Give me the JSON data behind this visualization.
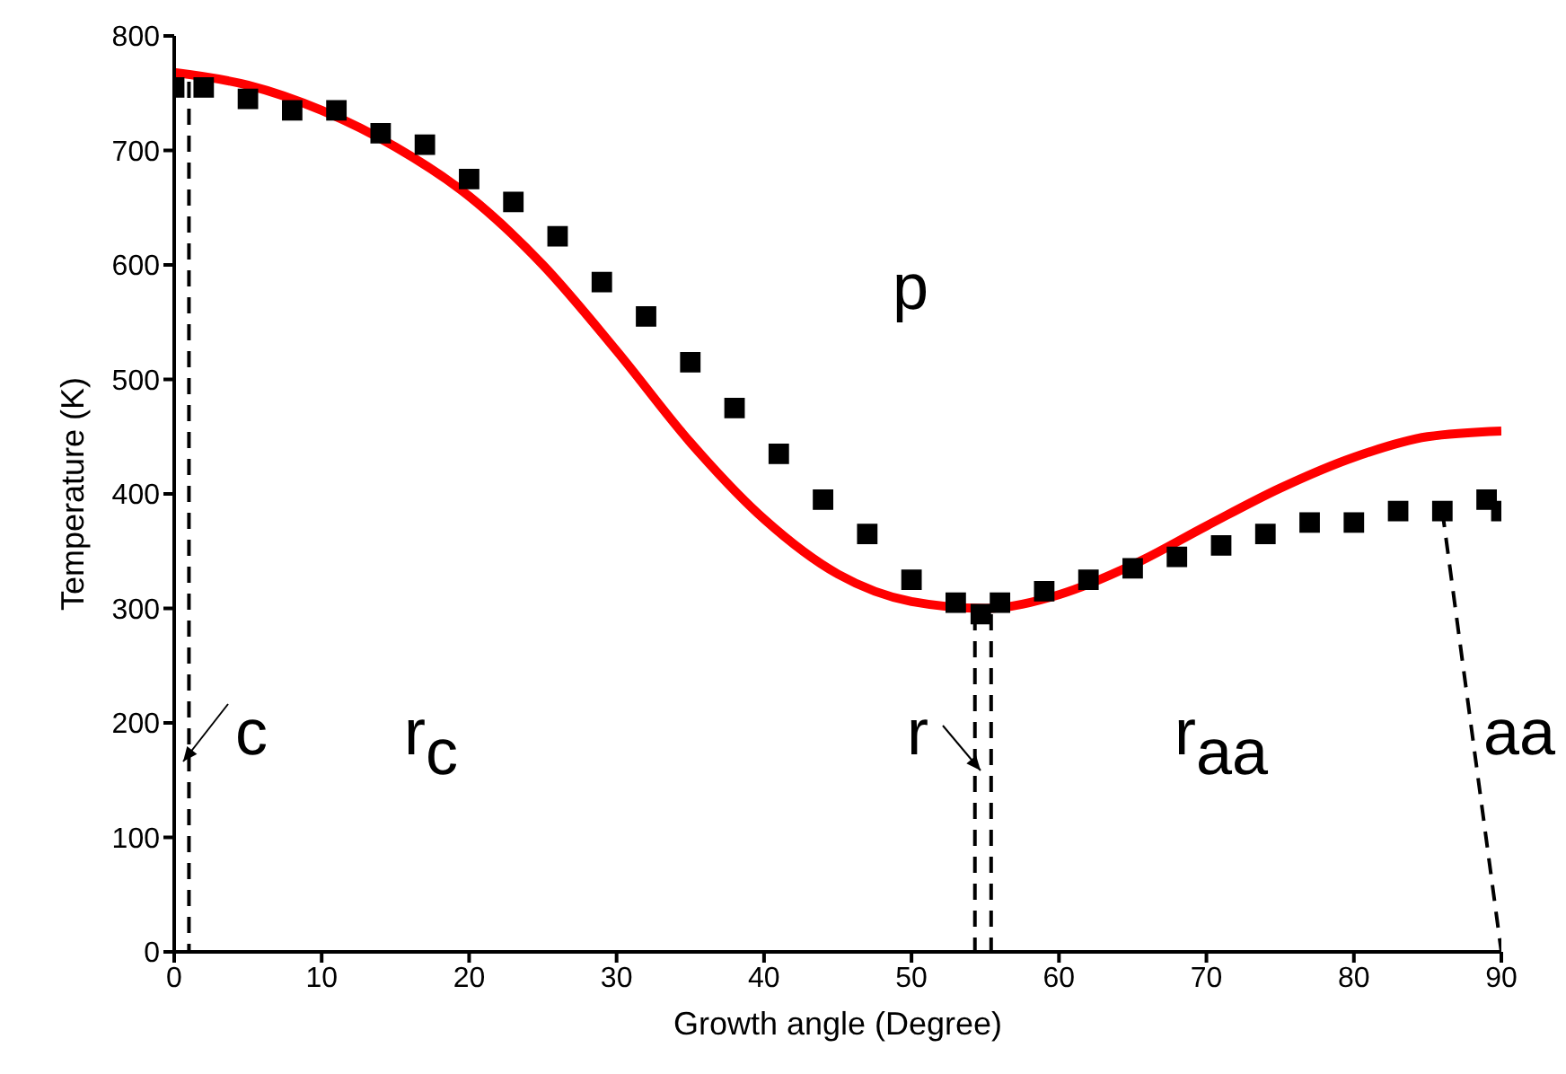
{
  "chart_data": {
    "type": "line",
    "xlabel": "Growth angle (Degree)",
    "ylabel": "Temperature (K)",
    "xlim": [
      0,
      90
    ],
    "xticks": [
      0,
      10,
      20,
      30,
      40,
      50,
      60,
      70,
      80,
      90
    ],
    "ylim": [
      0,
      800
    ],
    "yticks": [
      0,
      100,
      200,
      300,
      400,
      500,
      600,
      700,
      800
    ],
    "grid": false,
    "series": [
      {
        "color": "#ff0000",
        "marker": "none",
        "line_style": "solid",
        "x": [
          0,
          5,
          10,
          15,
          20,
          25,
          30,
          35,
          40,
          45,
          50,
          55,
          60,
          65,
          70,
          75,
          80,
          85,
          90
        ],
        "values": [
          768,
          757,
          735,
          703,
          660,
          600,
          525,
          445,
          378,
          330,
          306,
          300,
          312,
          338,
          372,
          405,
          432,
          450,
          455
        ]
      },
      {
        "type": "scatter",
        "color": "#000000",
        "marker": "square",
        "x": [
          0,
          2,
          5,
          8,
          11,
          14,
          17,
          20,
          23,
          26,
          29,
          32,
          35,
          38,
          41,
          44,
          47,
          50,
          53,
          54.7,
          56,
          59,
          62,
          65,
          68,
          71,
          74,
          77,
          80,
          83,
          86,
          89,
          90
        ],
        "values": [
          755,
          755,
          745,
          735,
          735,
          715,
          705,
          675,
          655,
          625,
          585,
          555,
          515,
          475,
          435,
          395,
          365,
          325,
          305,
          295,
          305,
          315,
          325,
          335,
          345,
          355,
          365,
          375,
          375,
          385,
          385,
          395,
          385
        ]
      },
      {
        "color": "#000000",
        "marker": "none",
        "line_style": "dashed",
        "x": [
          1,
          1
        ],
        "values": [
          760,
          0
        ]
      },
      {
        "color": "#000000",
        "marker": "none",
        "line_style": "dashed",
        "x": [
          54.3,
          54.3
        ],
        "values": [
          295,
          0
        ]
      },
      {
        "color": "#000000",
        "marker": "none",
        "line_style": "dashed",
        "x": [
          55.4,
          55.4
        ],
        "values": [
          295,
          0
        ]
      },
      {
        "color": "#000000",
        "marker": "none",
        "line_style": "dashed",
        "x": [
          86,
          90
        ],
        "values": [
          385,
          0
        ]
      }
    ],
    "annotations": [
      "p",
      "c",
      "r$_{c}$",
      "r",
      "r$_{aa}$",
      "aa"
    ]
  }
}
